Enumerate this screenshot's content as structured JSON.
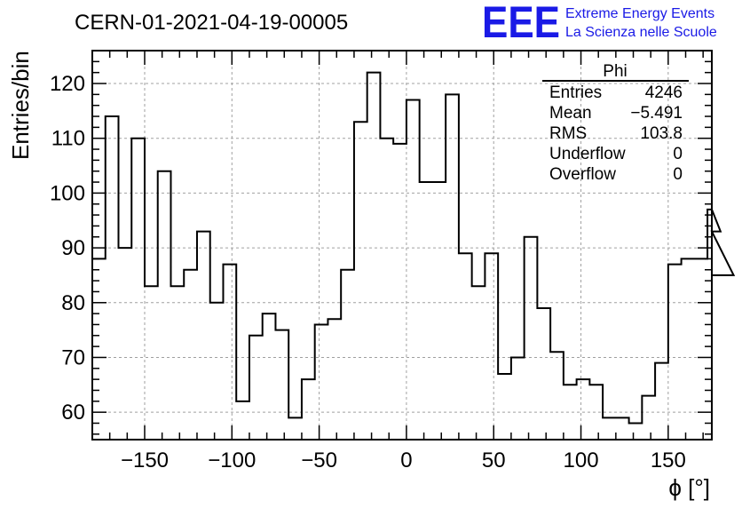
{
  "chart_data": {
    "type": "histogram",
    "title": "CERN-01-2021-04-19-00005",
    "xlabel": "ϕ [°]",
    "ylabel": "Entries/bin",
    "xlim": [
      -180,
      175
    ],
    "ylim": [
      55,
      126
    ],
    "grid": true,
    "x_ticks": [
      -150,
      -100,
      -50,
      0,
      50,
      100,
      150
    ],
    "x_tick_labels": [
      "−150",
      "−100",
      "−50",
      "0",
      "50",
      "100",
      "150"
    ],
    "y_ticks": [
      60,
      70,
      80,
      90,
      100,
      110,
      120
    ],
    "y_tick_labels": [
      "60",
      "70",
      "80",
      "90",
      "100",
      "110",
      "120"
    ],
    "bin_width": 7.5,
    "bin_edges_start": -180,
    "values": [
      88,
      114,
      90,
      110,
      83,
      104,
      83,
      86,
      93,
      80,
      87,
      62,
      74,
      78,
      75,
      59,
      66,
      76,
      77,
      86,
      113,
      122,
      110,
      109,
      117,
      102,
      102,
      118,
      89,
      83,
      89,
      67,
      70,
      92,
      79,
      71,
      65,
      66,
      65,
      59,
      59,
      58,
      63,
      69,
      87,
      88,
      88,
      97,
      93,
      85
    ],
    "stats": {
      "name": "Phi",
      "rows": [
        {
          "label": "Entries",
          "value": "4246"
        },
        {
          "label": "Mean",
          "value": "−5.491"
        },
        {
          "label": "RMS",
          "value": "103.8"
        },
        {
          "label": "Underflow",
          "value": "0"
        },
        {
          "label": "Overflow",
          "value": "0"
        }
      ]
    },
    "logo": {
      "mark": "EEE",
      "line1": "Extreme Energy Events",
      "line2": "La Scienza nelle Scuole",
      "color": "#1a1ae6"
    },
    "line_color": "#000000",
    "grid_color": "#a0a0a0"
  }
}
